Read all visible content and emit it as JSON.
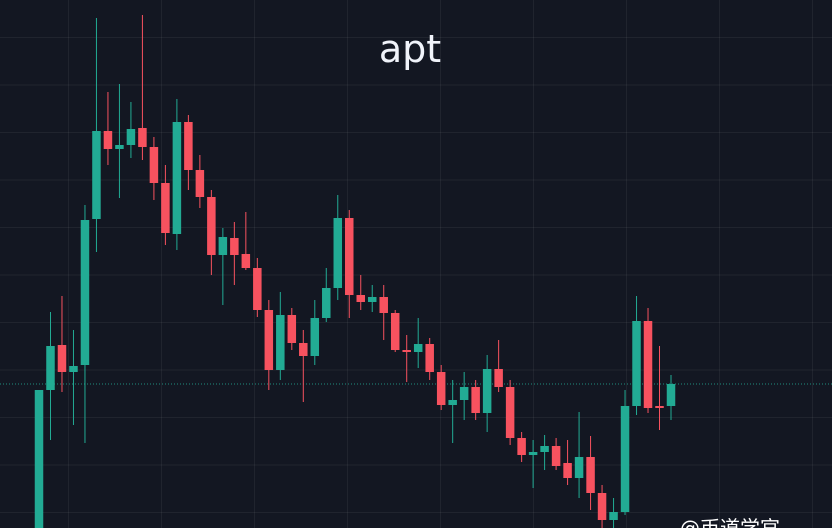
{
  "chart_data": {
    "type": "candlestick",
    "title": "apt",
    "watermark": "@币道学官",
    "ylim": [
      0,
      52.8
    ],
    "up_color": "#22ab94",
    "down_color": "#f7525f",
    "price_line": true,
    "open": [
      0,
      13.8,
      18.3,
      15.6,
      16.3,
      30.9,
      39.7,
      37.9,
      38.3,
      40,
      38.1,
      34.5,
      29.4,
      40.6,
      35.8,
      33.1,
      27.3,
      29,
      27.4,
      26,
      21.8,
      15.8,
      21.3,
      18.5,
      17.2,
      21,
      24,
      31,
      23.3,
      22.6,
      23.1,
      21.5,
      17.8,
      17.6,
      18.4,
      15.6,
      12.3,
      12.8,
      14.1,
      11.5,
      15.9,
      14.1,
      9,
      7.3,
      7.6,
      8.2,
      6.5,
      5,
      7.1,
      3.5,
      0.8,
      1.6,
      12.2,
      20.7,
      12.2,
      12.2
    ],
    "high": [
      13.8,
      21.6,
      23.2,
      19.8,
      32.3,
      51,
      43.6,
      44.4,
      42.6,
      51.3,
      39.1,
      36.3,
      42.9,
      41.3,
      37.3,
      33.8,
      30,
      30.6,
      31.6,
      27,
      22.8,
      23.6,
      22,
      19.8,
      22.8,
      26,
      33.3,
      31.8,
      25.3,
      24.3,
      24.3,
      21.8,
      19.3,
      21,
      19,
      16.3,
      14.8,
      15.6,
      14.8,
      17.3,
      18.8,
      14.8,
      9.6,
      8.8,
      9.3,
      9,
      8.8,
      11.6,
      9.2,
      4.3,
      3,
      13.8,
      23.2,
      22,
      18.2,
      15.3
    ],
    "low": [
      0,
      8.8,
      13.6,
      10.3,
      8.5,
      27.6,
      36.3,
      33,
      37,
      36.8,
      32.8,
      28.3,
      27.8,
      33.8,
      32,
      25.3,
      22.3,
      24.3,
      25.8,
      21.1,
      13.8,
      14.8,
      17.8,
      12.6,
      16.3,
      20.6,
      22.8,
      21,
      21.8,
      21.6,
      18.8,
      17.6,
      14.6,
      16,
      14.8,
      11.8,
      8.5,
      10.8,
      10.8,
      9.6,
      13.6,
      8.3,
      6.6,
      4,
      5.8,
      5.8,
      4.3,
      3,
      1.8,
      0,
      0,
      1.3,
      11.3,
      11.5,
      9.8,
      10.8
    ],
    "close": [
      13.8,
      18.2,
      15.6,
      16.2,
      30.8,
      39.7,
      37.9,
      38.3,
      39.9,
      38.1,
      34.5,
      29.5,
      40.6,
      35.8,
      33.1,
      27.3,
      29.1,
      27.3,
      26,
      21.8,
      15.8,
      21.3,
      18.5,
      17.2,
      21,
      24,
      31,
      23.3,
      22.6,
      23.1,
      21.5,
      17.8,
      17.6,
      18.4,
      15.6,
      12.3,
      12.8,
      14.1,
      11.5,
      15.9,
      14.1,
      9,
      7.3,
      7.6,
      8.2,
      6.2,
      5,
      7.1,
      3.5,
      0.8,
      1.6,
      12.2,
      20.7,
      12,
      12,
      14.4
    ]
  }
}
